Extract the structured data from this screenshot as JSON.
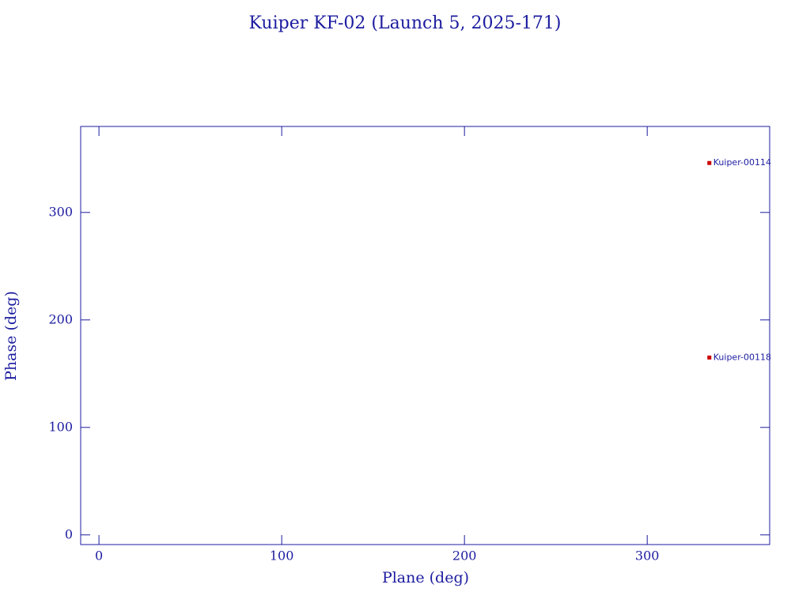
{
  "chart_data": {
    "type": "scatter",
    "title": "Kuiper KF-02 (Launch 5, 2025-171)",
    "x_label": "Plane (deg)",
    "y_label": "Phase (deg)",
    "series": [
      {
        "color": "#cc0000",
        "x": [
          334,
          334
        ],
        "values": [
          346,
          165
        ],
        "point_labels": [
          "Kuiper-00114",
          "Kuiper-00118"
        ]
      }
    ],
    "xlim": [
      -10,
      367
    ],
    "ylim": [
      -9,
      380
    ],
    "xticks": [
      0,
      100,
      200,
      300
    ],
    "yticks": [
      0,
      100,
      200,
      300
    ],
    "axis_color": "#1c1ca0"
  }
}
